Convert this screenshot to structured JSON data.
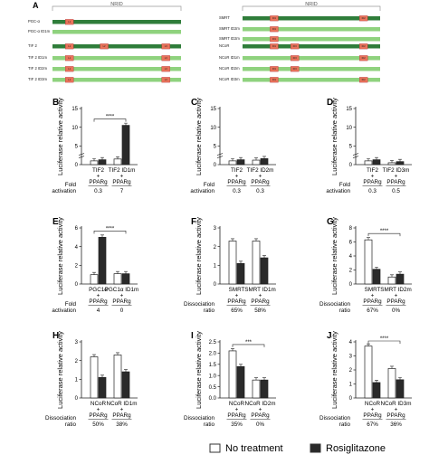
{
  "figure": {
    "panel_a": {
      "letter": "A",
      "groups": [
        {
          "header": "NRID",
          "constructs": [
            {
              "name": "PGC-α",
              "bar": "dark",
              "boxes": [
                "L1"
              ]
            },
            {
              "name": "PGC-α ID1m",
              "bar": "light",
              "boxes": []
            },
            {
              "name": "TIF 2",
              "bar": "dark",
              "boxes": [
                "L1",
                "L2",
                "L3"
              ]
            },
            {
              "name": "TIF 2 ID1m",
              "bar": "light",
              "boxes": [
                "L1",
                "L3"
              ]
            },
            {
              "name": "TIF 2 ID2m",
              "bar": "light",
              "boxes": [
                "L1",
                "L3"
              ]
            },
            {
              "name": "TIF 2 ID3m",
              "bar": "light",
              "boxes": [
                "L1",
                "L3"
              ]
            }
          ]
        },
        {
          "header": "NRID",
          "constructs": [
            {
              "name": "SMRT",
              "bar": "dark",
              "boxes": [
                "ID1",
                "ID2"
              ]
            },
            {
              "name": "SMRT ID2m",
              "bar": "light",
              "boxes": [
                "ID1"
              ]
            },
            {
              "name": "SMRT ID2m",
              "bar": "light",
              "boxes": [
                "ID1"
              ]
            },
            {
              "name": "NCoR",
              "bar": "dark",
              "boxes": [
                "ID1",
                "ID2",
                "ID3"
              ]
            },
            {
              "name": "NCoR ID1m",
              "bar": "light",
              "boxes": [
                "ID2",
                "ID3"
              ]
            },
            {
              "name": "NCoR ID2m",
              "bar": "light",
              "boxes": [
                "ID1",
                "ID3"
              ]
            },
            {
              "name": "NCoR ID3m",
              "bar": "light",
              "boxes": [
                "ID1",
                "ID2"
              ]
            }
          ]
        }
      ]
    },
    "ylabel": "Luciferase relative activity",
    "plus": "+",
    "receptor": "PPARg",
    "legend": {
      "no_treatment": "No treatment",
      "rosiglitazone": "Rosiglitazone"
    },
    "colors": {
      "no_treatment": "#ffffff",
      "rosiglitazone": "#2a2a2a",
      "dark_bar": "#2f7d3a",
      "light_bar": "#8fd27e",
      "motif": "#e8735a"
    }
  },
  "chart_data": [
    {
      "panel": "B",
      "type": "bar",
      "groups": [
        "TIF2",
        "TIF2 ID1m"
      ],
      "series": [
        {
          "name": "No treatment",
          "values": [
            1.0,
            1.5
          ]
        },
        {
          "name": "Rosiglitazone",
          "values": [
            1.3,
            10.5
          ]
        }
      ],
      "ylim": [
        0,
        15
      ],
      "yticks": [
        "0",
        "5",
        "10",
        "15"
      ],
      "break": true,
      "row_label": [
        "Fold",
        "activation"
      ],
      "row_values": [
        "0.3",
        "7"
      ],
      "significance": "****"
    },
    {
      "panel": "C",
      "type": "bar",
      "groups": [
        "TIF2",
        "TIF2 ID2m"
      ],
      "series": [
        {
          "name": "No treatment",
          "values": [
            1.0,
            1.2
          ]
        },
        {
          "name": "Rosiglitazone",
          "values": [
            1.3,
            1.6
          ]
        }
      ],
      "ylim": [
        0,
        15
      ],
      "yticks": [
        "0",
        "5",
        "10",
        "15"
      ],
      "break": true,
      "row_label": [
        "Fold",
        "activation"
      ],
      "row_values": [
        "0.3",
        "0.3"
      ],
      "significance": ""
    },
    {
      "panel": "D",
      "type": "bar",
      "groups": [
        "TIF2",
        "TIF2 ID3m"
      ],
      "series": [
        {
          "name": "No treatment",
          "values": [
            1.0,
            0.5
          ]
        },
        {
          "name": "Rosiglitazone",
          "values": [
            1.3,
            0.8
          ]
        }
      ],
      "ylim": [
        0,
        15
      ],
      "yticks": [
        "0",
        "5",
        "10",
        "15"
      ],
      "break": true,
      "row_label": [
        "Fold",
        "activation"
      ],
      "row_values": [
        "0.3",
        "0.5"
      ],
      "significance": ""
    },
    {
      "panel": "E",
      "type": "bar",
      "groups": [
        "PGC1α",
        "PGC1α ID1m"
      ],
      "series": [
        {
          "name": "No treatment",
          "values": [
            1.0,
            1.1
          ]
        },
        {
          "name": "Rosiglitazone",
          "values": [
            5.0,
            1.1
          ]
        }
      ],
      "ylim": [
        0,
        6
      ],
      "yticks": [
        "0",
        "2",
        "4",
        "6"
      ],
      "break": false,
      "row_label": [
        "Fold",
        "activation"
      ],
      "row_values": [
        "4",
        "0"
      ],
      "significance": "****"
    },
    {
      "panel": "F",
      "type": "bar",
      "groups": [
        "SMRT",
        "SMRT ID1m"
      ],
      "series": [
        {
          "name": "No treatment",
          "values": [
            2.3,
            2.3
          ]
        },
        {
          "name": "Rosiglitazone",
          "values": [
            1.1,
            1.4
          ]
        }
      ],
      "ylim": [
        0,
        3
      ],
      "yticks": [
        "0",
        "1",
        "2",
        "3"
      ],
      "break": false,
      "row_label": [
        "Dissociation",
        "ratio"
      ],
      "row_values": [
        "65%",
        "58%"
      ],
      "significance": ""
    },
    {
      "panel": "G",
      "type": "bar",
      "groups": [
        "SMRT",
        "SMRT ID2m"
      ],
      "series": [
        {
          "name": "No treatment",
          "values": [
            6.3,
            1.0
          ]
        },
        {
          "name": "Rosiglitazone",
          "values": [
            2.1,
            1.4
          ]
        }
      ],
      "ylim": [
        0,
        8
      ],
      "yticks": [
        "0",
        "2",
        "4",
        "6",
        "8"
      ],
      "break": false,
      "row_label": [
        "Dissociation",
        "ratio"
      ],
      "row_values": [
        "67%",
        "0%"
      ],
      "significance": "****"
    },
    {
      "panel": "H",
      "type": "bar",
      "groups": [
        "NCoR",
        "NCoR ID1m"
      ],
      "series": [
        {
          "name": "No treatment",
          "values": [
            2.2,
            2.3
          ]
        },
        {
          "name": "Rosiglitazone",
          "values": [
            1.1,
            1.4
          ]
        }
      ],
      "ylim": [
        0,
        3
      ],
      "yticks": [
        "0",
        "1",
        "2",
        "3"
      ],
      "break": false,
      "row_label": [
        "Dissociation",
        "ratio"
      ],
      "row_values": [
        "50%",
        "38%"
      ],
      "significance": ""
    },
    {
      "panel": "I",
      "type": "bar",
      "groups": [
        "NCoR",
        "NCoR ID2m"
      ],
      "series": [
        {
          "name": "No treatment",
          "values": [
            2.1,
            0.8
          ]
        },
        {
          "name": "Rosiglitazone",
          "values": [
            1.4,
            0.8
          ]
        }
      ],
      "ylim": [
        0,
        2.5
      ],
      "yticks": [
        "0.0",
        "0.5",
        "1.0",
        "1.5",
        "2.0",
        "2.5"
      ],
      "break": false,
      "row_label": [
        "Dissociation",
        "ratio"
      ],
      "row_values": [
        "35%",
        "0%"
      ],
      "significance": "***"
    },
    {
      "panel": "J",
      "type": "bar",
      "groups": [
        "NCoR",
        "NCoR ID3m"
      ],
      "series": [
        {
          "name": "No treatment",
          "values": [
            3.7,
            2.1
          ]
        },
        {
          "name": "Rosiglitazone",
          "values": [
            1.1,
            1.3
          ]
        }
      ],
      "ylim": [
        0,
        4
      ],
      "yticks": [
        "0",
        "1",
        "2",
        "3",
        "4"
      ],
      "break": false,
      "row_label": [
        "Dissociation",
        "ratio"
      ],
      "row_values": [
        "67%",
        "36%"
      ],
      "significance": "****"
    }
  ]
}
